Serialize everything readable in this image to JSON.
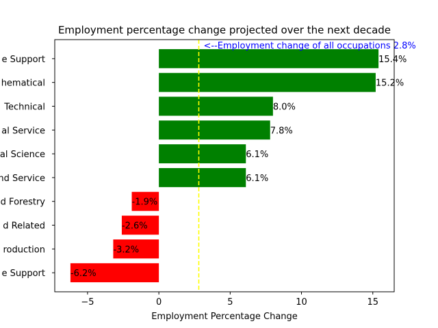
{
  "chart_data": {
    "type": "bar",
    "orientation": "horizontal",
    "title": "Employment percentage change projected over the next decade",
    "xlabel": "Employment Percentage Change",
    "ylabel": "",
    "categories": [
      "e Support",
      "hematical",
      "Technical",
      "al Service",
      "al Science",
      "nd Service",
      "d Forestry",
      "d Related",
      "roduction",
      "e Support"
    ],
    "values": [
      15.4,
      15.2,
      8.0,
      7.8,
      6.1,
      6.1,
      -1.9,
      -2.6,
      -3.2,
      -6.2
    ],
    "value_labels": [
      "15.4%",
      "15.2%",
      "8.0%",
      "7.8%",
      "6.1%",
      "6.1%",
      "-1.9%",
      "-2.6%",
      "-3.2%",
      "-6.2%"
    ],
    "xlim": [
      -7.3,
      16.5
    ],
    "xticks": [
      -5,
      0,
      5,
      10,
      15
    ],
    "xtick_labels": [
      "−5",
      "0",
      "5",
      "10",
      "15"
    ],
    "reference_line": {
      "value": 2.8,
      "label": "<--Employment change of all occupations 2.8%",
      "color": "#ffff00",
      "label_color": "#0000ff",
      "style": "dashed"
    },
    "colors": {
      "positive": "#008000",
      "negative": "#ff0000"
    },
    "grid": false,
    "legend": "none"
  }
}
